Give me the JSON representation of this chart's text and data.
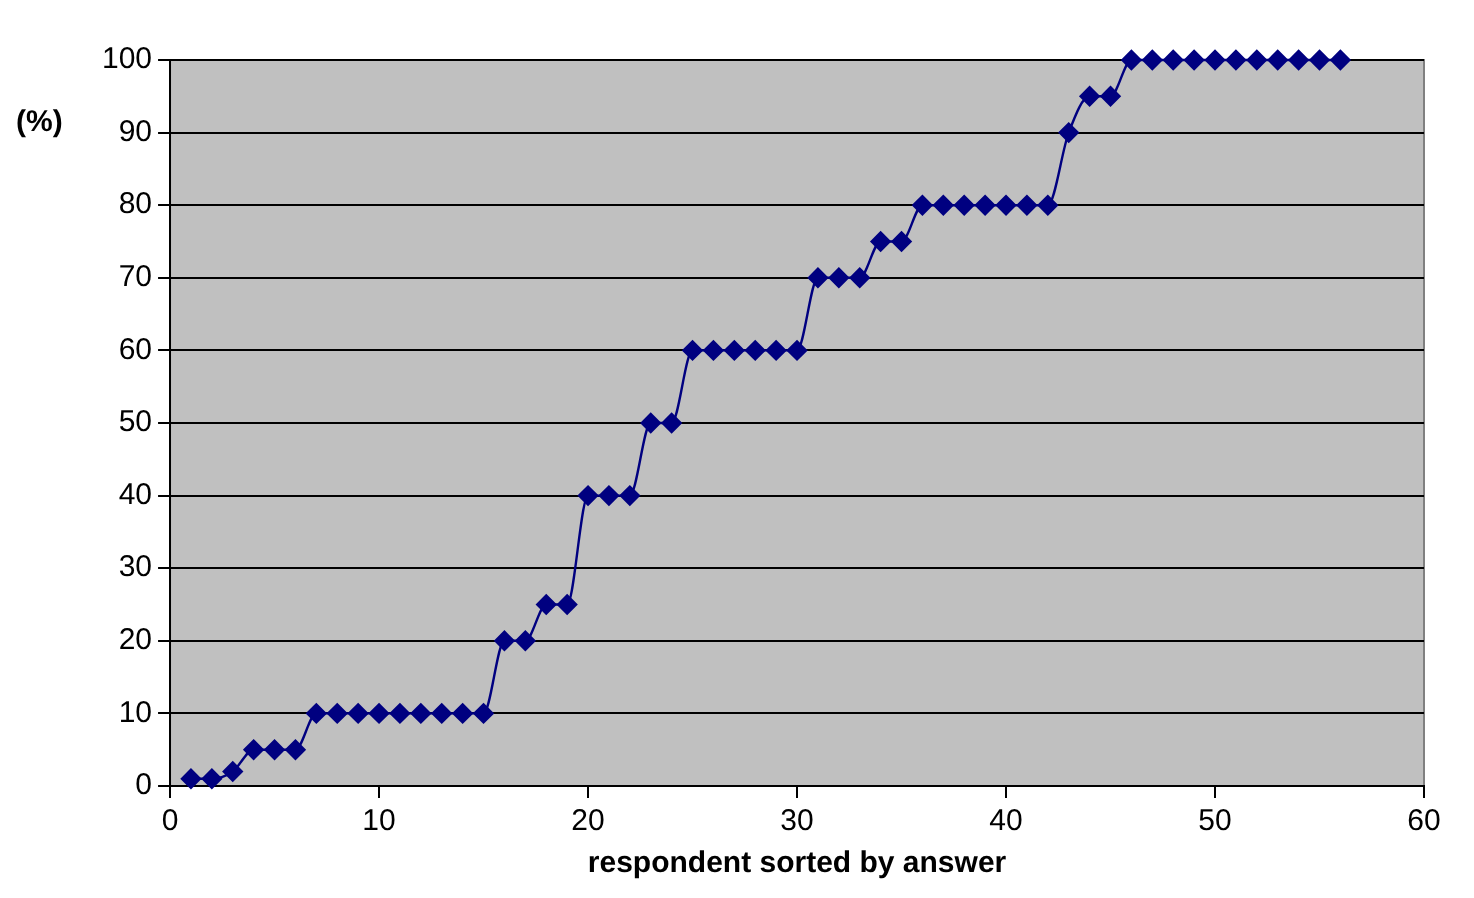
{
  "chart_data": {
    "type": "line",
    "xlabel": "respondent sorted by answer",
    "ylabel": "(%)",
    "x": [
      1,
      2,
      3,
      4,
      5,
      6,
      7,
      8,
      9,
      10,
      11,
      12,
      13,
      14,
      15,
      16,
      17,
      18,
      19,
      20,
      21,
      22,
      23,
      24,
      25,
      26,
      27,
      28,
      29,
      30,
      31,
      32,
      33,
      34,
      35,
      36,
      37,
      38,
      39,
      40,
      41,
      42,
      43,
      44,
      45,
      46,
      47,
      48,
      49,
      50,
      51,
      52,
      53,
      54,
      55,
      56
    ],
    "series": [
      {
        "color": "#000080",
        "values": [
          1,
          1,
          2,
          5,
          5,
          5,
          10,
          10,
          10,
          10,
          10,
          10,
          10,
          10,
          10,
          20,
          20,
          25,
          25,
          40,
          40,
          40,
          50,
          50,
          60,
          60,
          60,
          60,
          60,
          60,
          70,
          70,
          70,
          75,
          75,
          80,
          80,
          80,
          80,
          80,
          80,
          80,
          90,
          95,
          95,
          100,
          100,
          100,
          100,
          100,
          100,
          100,
          100,
          100,
          100,
          100
        ]
      }
    ],
    "xlim": [
      0,
      60
    ],
    "xticks": [
      0,
      10,
      20,
      30,
      40,
      50,
      60
    ],
    "ylim": [
      0,
      100
    ],
    "yticks": [
      0,
      10,
      20,
      30,
      40,
      50,
      60,
      70,
      80,
      90,
      100
    ],
    "grid": "y",
    "legend": false,
    "marker": "diamond",
    "line_style": "solid"
  }
}
